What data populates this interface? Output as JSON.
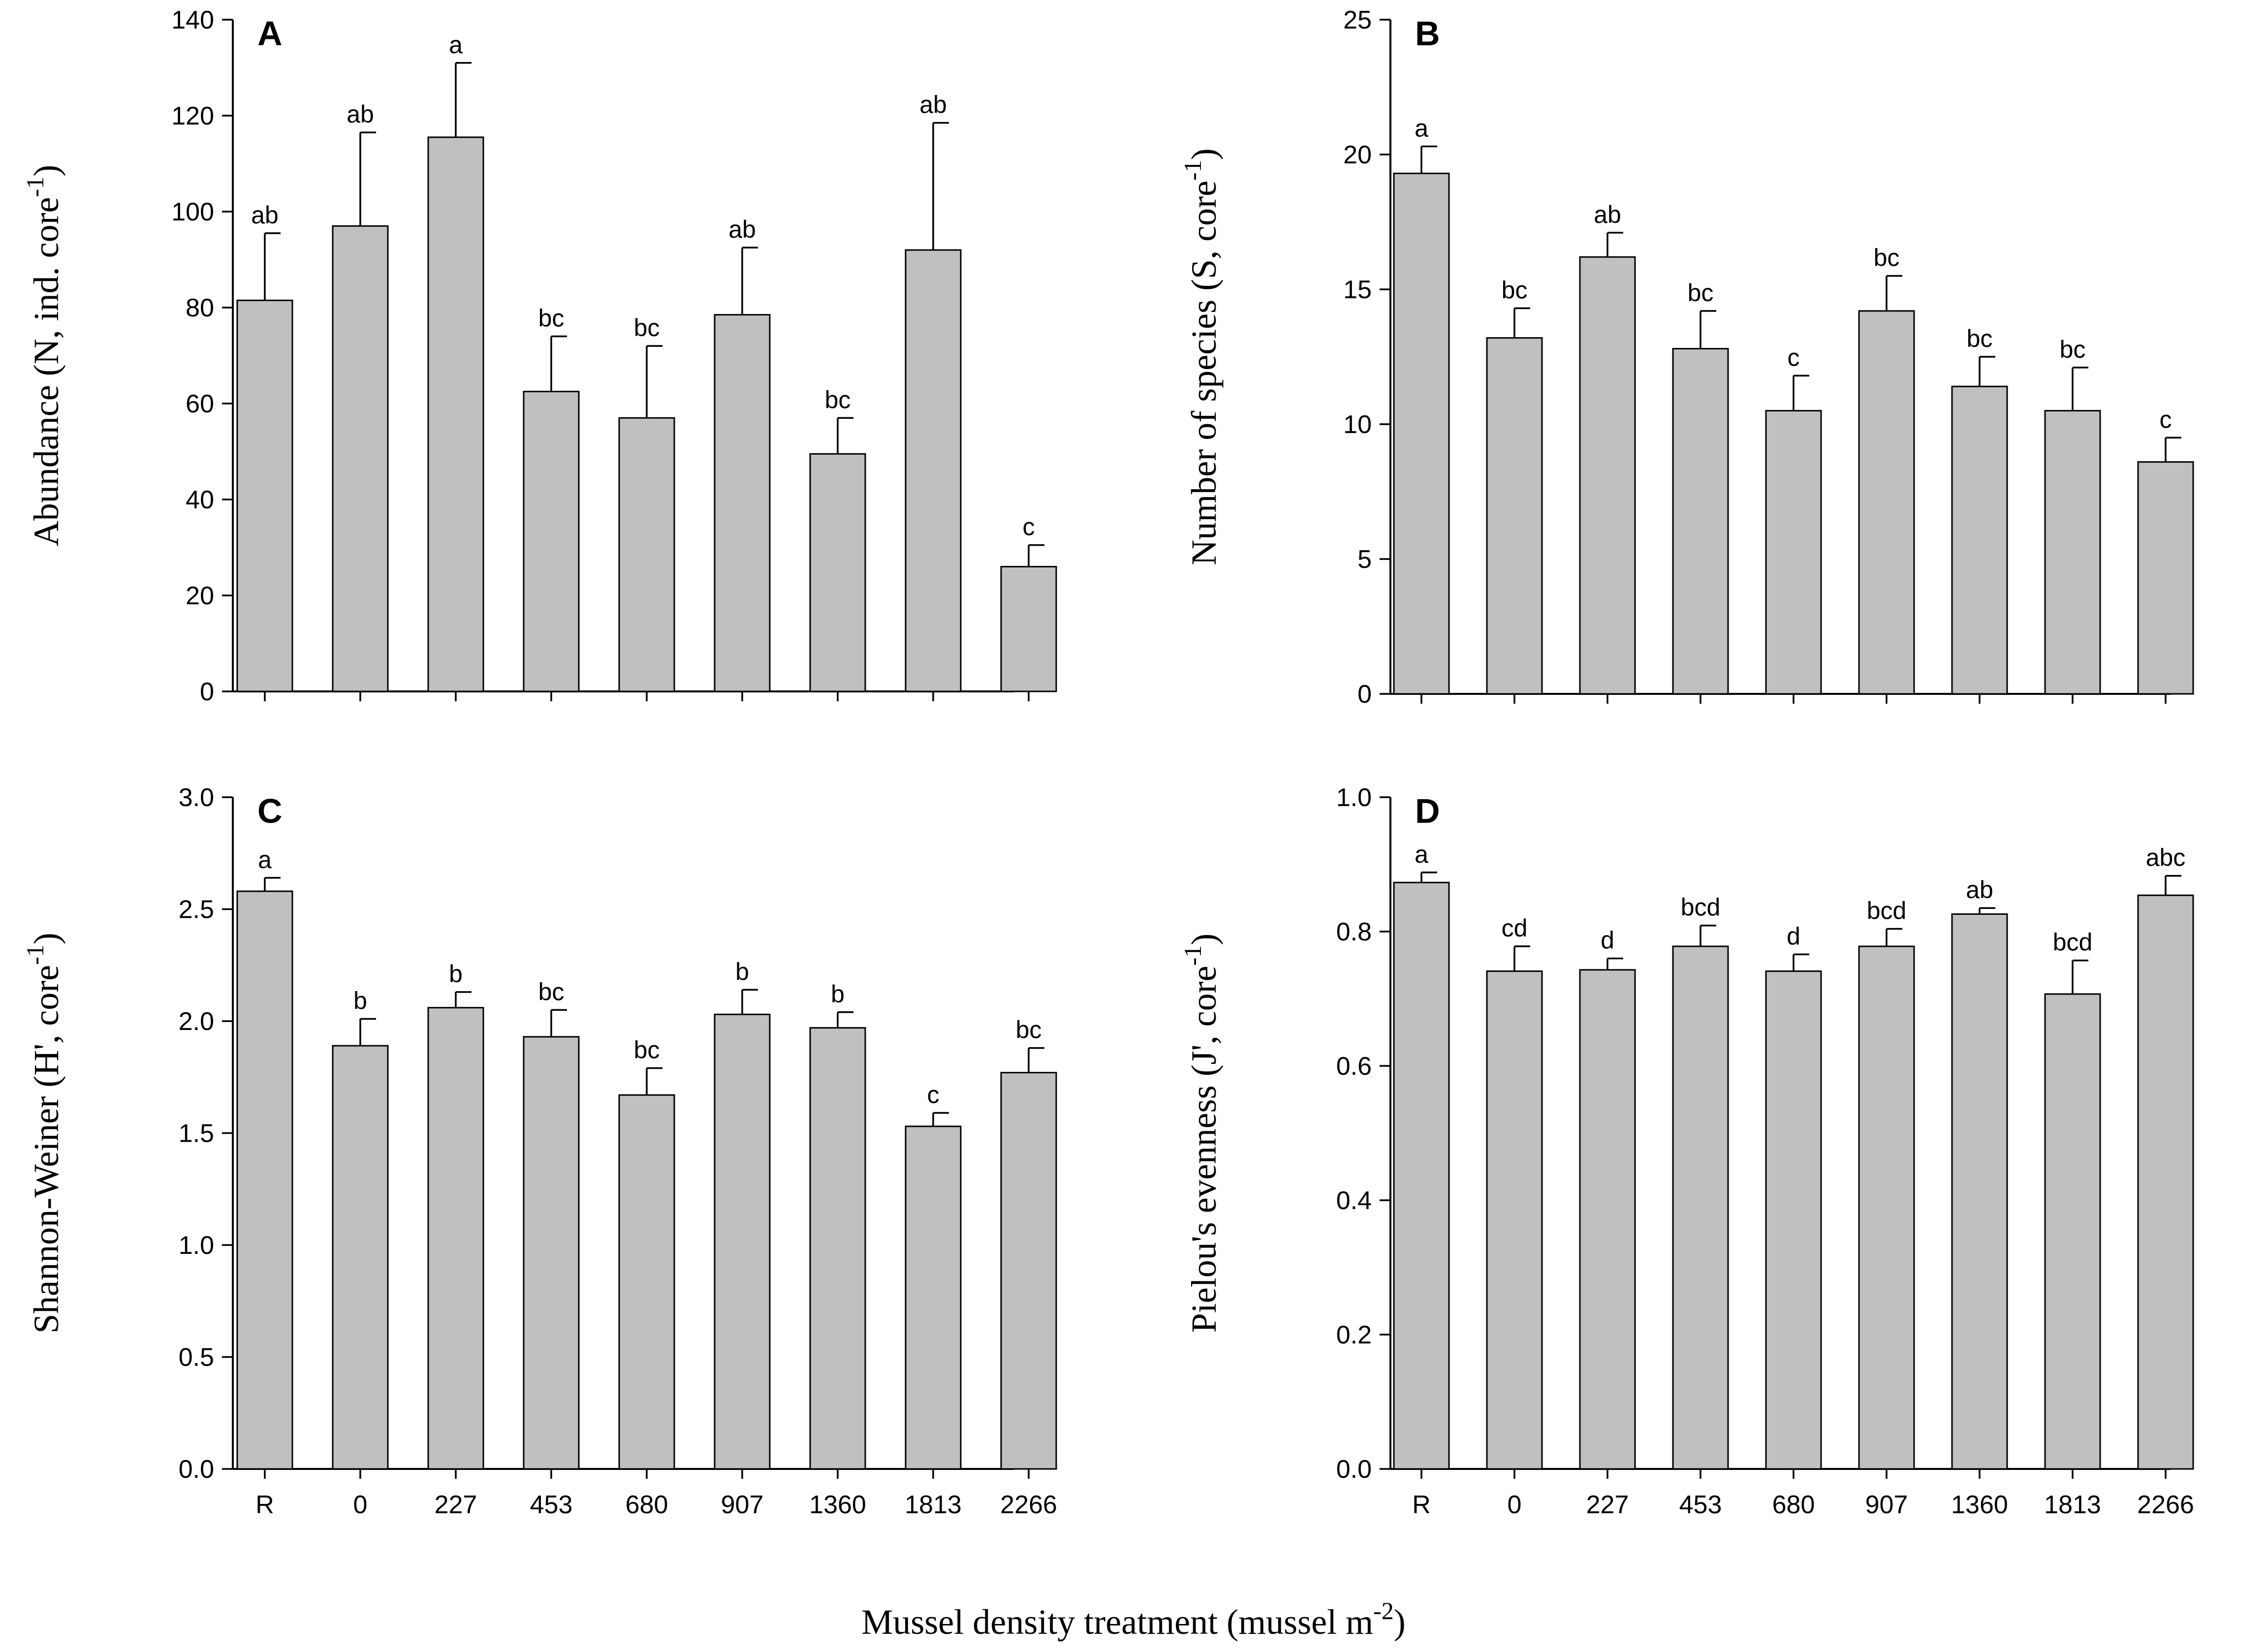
{
  "figure": {
    "xlabel_main": "Mussel density treatment (mussel m",
    "xlabel_sup": "-2",
    "xlabel_end": ")"
  },
  "chart_data": [
    {
      "panel": "A",
      "type": "bar",
      "categories": [
        "R",
        "0",
        "227",
        "453",
        "680",
        "907",
        "1360",
        "1813",
        "2266"
      ],
      "values": [
        81.5,
        97.0,
        115.5,
        62.5,
        57.0,
        78.5,
        49.5,
        92.0,
        26.0
      ],
      "errors": [
        14.0,
        19.5,
        15.5,
        11.5,
        15.0,
        14.0,
        7.5,
        26.5,
        4.5
      ],
      "letters": [
        "ab",
        "ab",
        "a",
        "bc",
        "bc",
        "ab",
        "bc",
        "ab",
        "c"
      ],
      "ylabel": "Abundance (N, ind. core",
      "ylabel_sup": "-1",
      "ylabel_end": ")",
      "ylim": [
        0,
        140
      ],
      "yticks": [
        0,
        20,
        40,
        60,
        80,
        100,
        120,
        140
      ],
      "ytick_labels": [
        "0",
        "20",
        "40",
        "60",
        "80",
        "100",
        "120",
        "140"
      ],
      "show_xtick_labels": false
    },
    {
      "panel": "B",
      "type": "bar",
      "categories": [
        "R",
        "0",
        "227",
        "453",
        "680",
        "907",
        "1360",
        "1813",
        "2266"
      ],
      "values": [
        19.3,
        13.2,
        16.2,
        12.8,
        10.5,
        14.2,
        11.4,
        10.5,
        8.6
      ],
      "errors": [
        1.0,
        1.1,
        0.9,
        1.4,
        1.3,
        1.3,
        1.1,
        1.6,
        0.9
      ],
      "letters": [
        "a",
        "bc",
        "ab",
        "bc",
        "c",
        "bc",
        "bc",
        "bc",
        "c"
      ],
      "ylabel": "Number of species (S, core",
      "ylabel_sup": "-1",
      "ylabel_end": ")",
      "ylim": [
        0,
        25
      ],
      "yticks": [
        0,
        5,
        10,
        15,
        20,
        25
      ],
      "ytick_labels": [
        "0",
        "5",
        "10",
        "15",
        "20",
        "25"
      ],
      "show_xtick_labels": false
    },
    {
      "panel": "C",
      "type": "bar",
      "categories": [
        "R",
        "0",
        "227",
        "453",
        "680",
        "907",
        "1360",
        "1813",
        "2266"
      ],
      "values": [
        2.58,
        1.89,
        2.06,
        1.93,
        1.67,
        2.03,
        1.97,
        1.53,
        1.77
      ],
      "errors": [
        0.06,
        0.12,
        0.07,
        0.12,
        0.12,
        0.11,
        0.07,
        0.06,
        0.11
      ],
      "letters": [
        "a",
        "b",
        "b",
        "bc",
        "bc",
        "b",
        "b",
        "c",
        "bc"
      ],
      "ylabel": "Shannon-Weiner (H', core",
      "ylabel_sup": "-1",
      "ylabel_end": ")",
      "ylim": [
        0,
        3.0
      ],
      "yticks": [
        0,
        0.5,
        1.0,
        1.5,
        2.0,
        2.5,
        3.0
      ],
      "ytick_labels": [
        "0.0",
        "0.5",
        "1.0",
        "1.5",
        "2.0",
        "2.5",
        "3.0"
      ],
      "show_xtick_labels": true
    },
    {
      "panel": "D",
      "type": "bar",
      "categories": [
        "R",
        "0",
        "227",
        "453",
        "680",
        "907",
        "1360",
        "1813",
        "2266"
      ],
      "values": [
        0.873,
        0.741,
        0.743,
        0.778,
        0.741,
        0.778,
        0.826,
        0.707,
        0.854
      ],
      "errors": [
        0.015,
        0.037,
        0.017,
        0.031,
        0.025,
        0.026,
        0.009,
        0.05,
        0.029
      ],
      "letters": [
        "a",
        "cd",
        "d",
        "bcd",
        "d",
        "bcd",
        "ab",
        "bcd",
        "abc"
      ],
      "ylabel": "Pielou's evenness (J', core",
      "ylabel_sup": "-1",
      "ylabel_end": ")",
      "ylim": [
        0,
        1.0
      ],
      "yticks": [
        0,
        0.2,
        0.4,
        0.6,
        0.8,
        1.0
      ],
      "ytick_labels": [
        "0.0",
        "0.2",
        "0.4",
        "0.6",
        "0.8",
        "1.0"
      ],
      "show_xtick_labels": true
    }
  ]
}
